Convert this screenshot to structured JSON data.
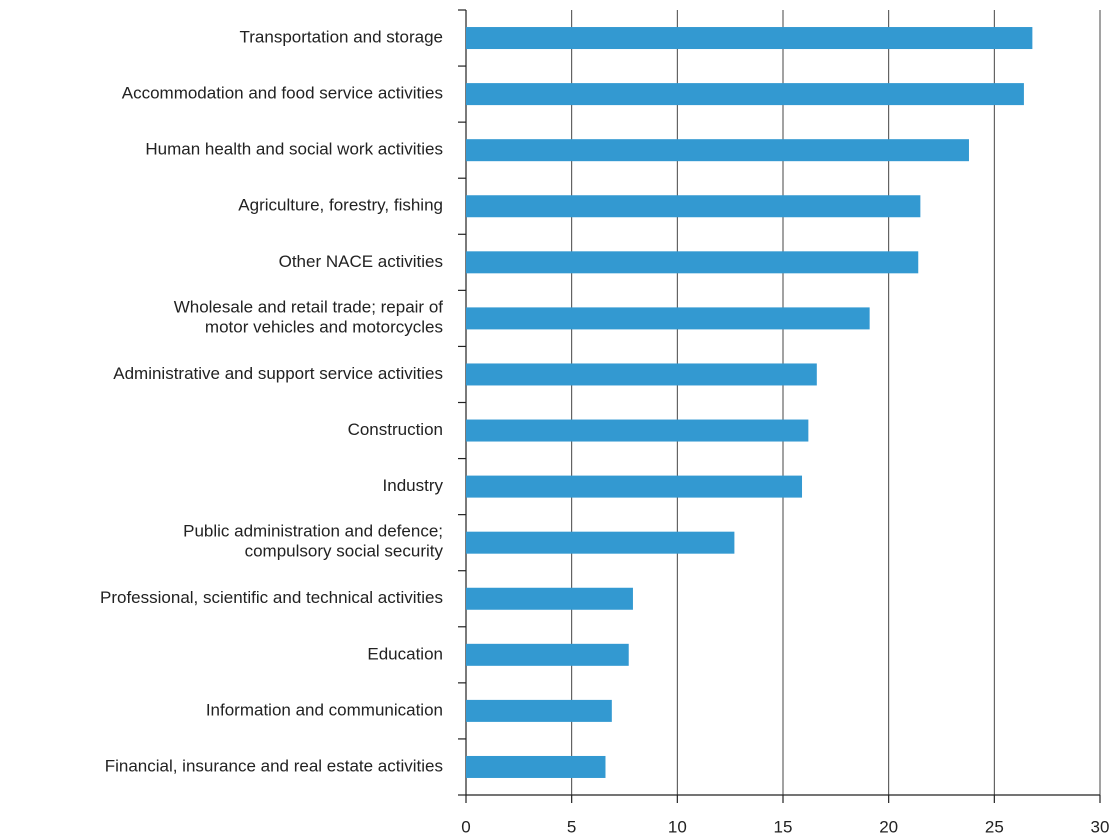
{
  "chart_data": {
    "type": "hbar",
    "categories": [
      "Transportation and storage",
      "Accommodation and food service activities",
      "Human health and social work activities",
      "Agriculture, forestry, fishing",
      "Other NACE activities",
      "Wholesale and retail trade; repair of\nmotor vehicles and motorcycles",
      "Administrative and support service activities",
      "Construction",
      "Industry",
      "Public administration and defence;\ncompulsory social security",
      "Professional, scientific and technical activities",
      "Education",
      "Information and communication",
      "Financial, insurance and real estate activities"
    ],
    "values": [
      26.8,
      26.4,
      23.8,
      21.5,
      21.4,
      19.1,
      16.6,
      16.2,
      15.9,
      12.7,
      7.9,
      7.7,
      6.9,
      6.6
    ],
    "color": "#3399d1",
    "xlim": [
      0,
      30
    ],
    "xticks": [
      0,
      5,
      10,
      15,
      20,
      25,
      30
    ],
    "grid": true
  }
}
